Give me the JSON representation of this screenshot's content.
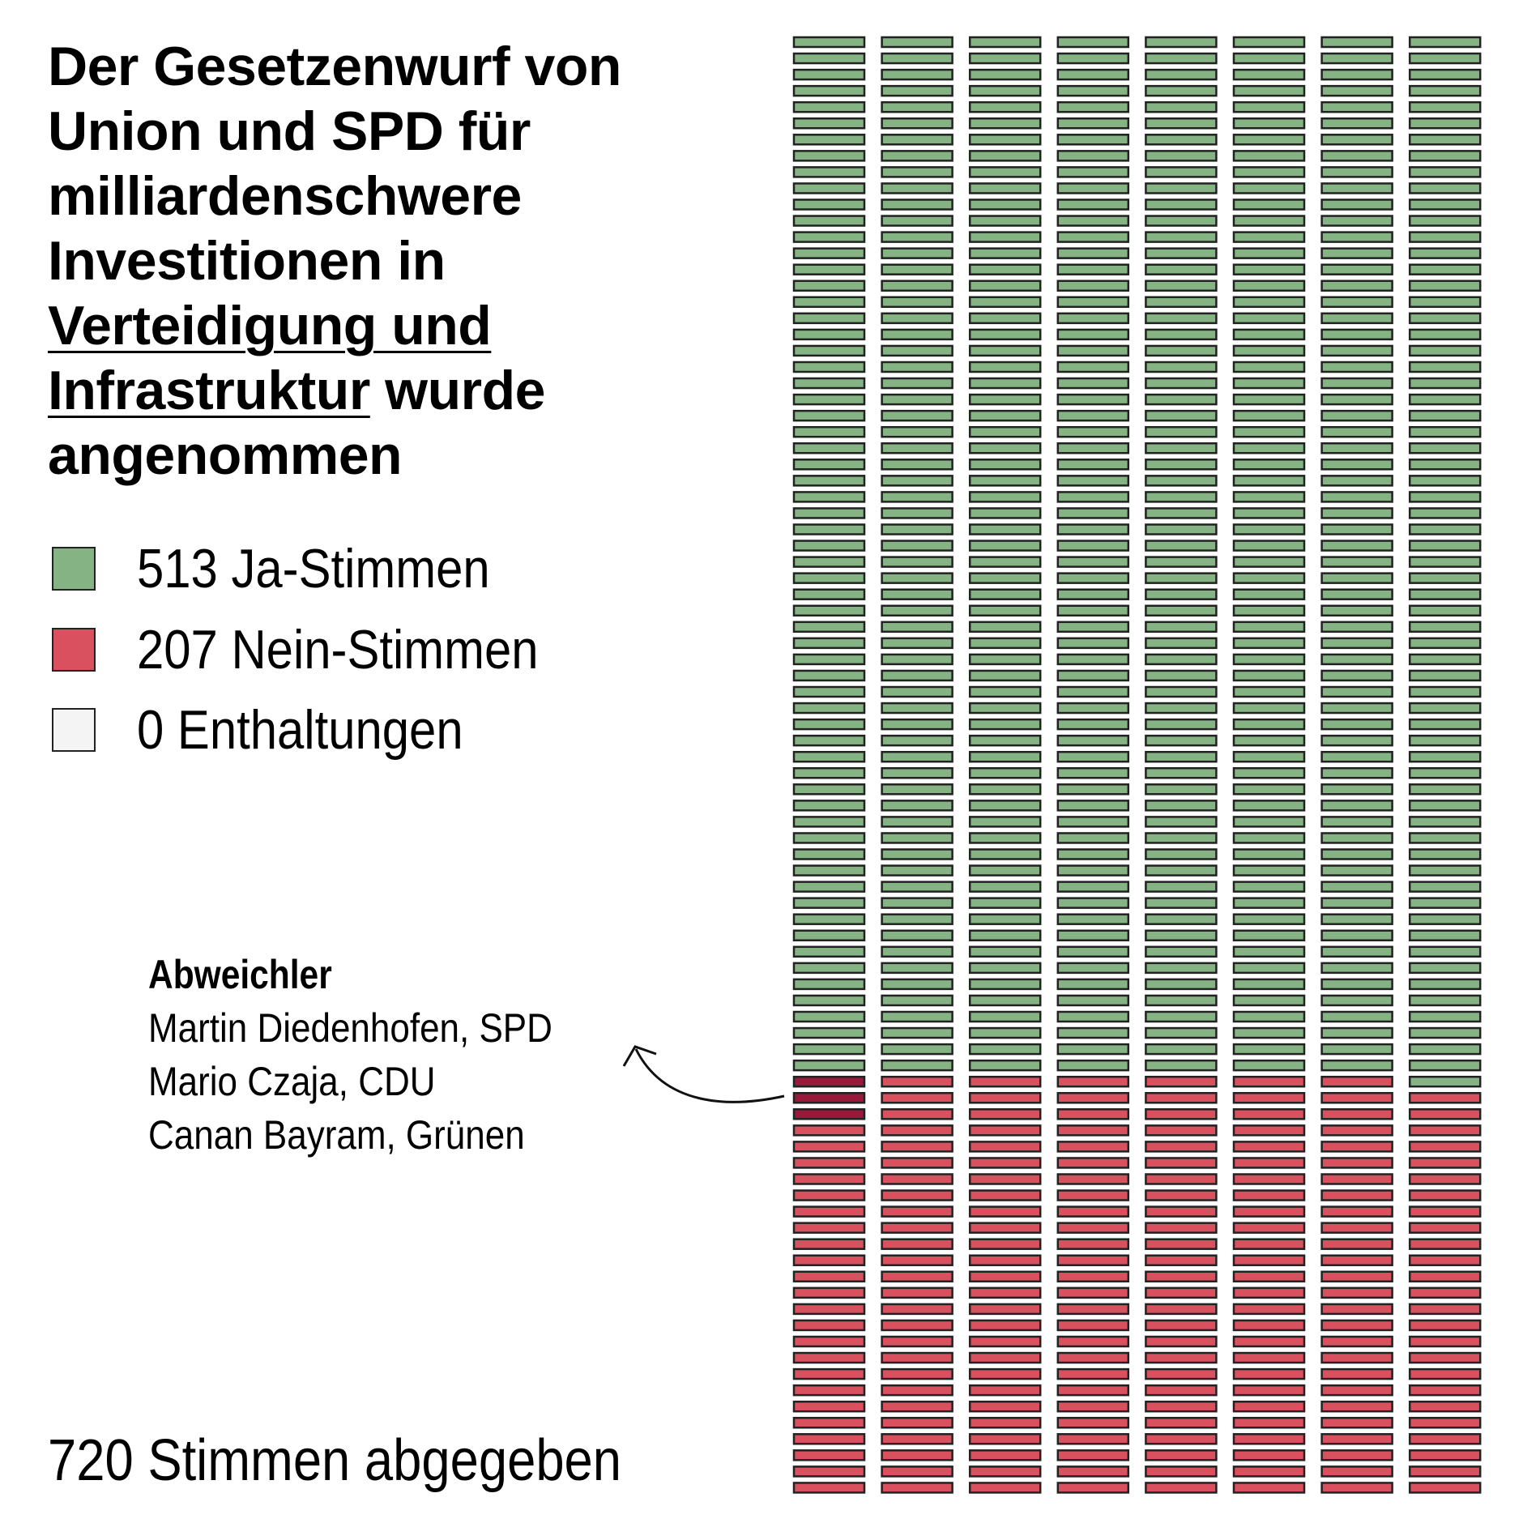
{
  "title": {
    "part1": "Der Gesetzenwurf von Union und SPD für milliardenschwere Investitionen in ",
    "link": "Verteidigung und Infrastruktur",
    "part2": " wurde angenommen"
  },
  "legend": [
    {
      "label": "513 Ja-Stimmen",
      "color": "#85b383"
    },
    {
      "label": "207 Nein-Stimmen",
      "color": "#d9505f"
    },
    {
      "label": "0 Enthaltungen",
      "color": "#f4f4f4"
    }
  ],
  "deviators": {
    "heading": "Abweichler",
    "names": [
      "Martin Diedenhofen, SPD",
      "Mario Czaja, CDU",
      "Canan Bayram, Grünen"
    ],
    "color": "#98193a"
  },
  "total": "720 Stimmen abgegeben",
  "chart_data": {
    "type": "waffle",
    "columns": 8,
    "rows": 90,
    "total": 720,
    "categories": [
      "Ja-Stimmen",
      "Nein-Stimmen",
      "Enthaltungen"
    ],
    "values": [
      513,
      207,
      0
    ],
    "highlighted_no_votes": 3,
    "colors": {
      "yes": "#85b383",
      "no": "#d9505f",
      "abstain": "#f4f4f4",
      "deviator": "#98193a",
      "stroke": "#222222"
    }
  }
}
